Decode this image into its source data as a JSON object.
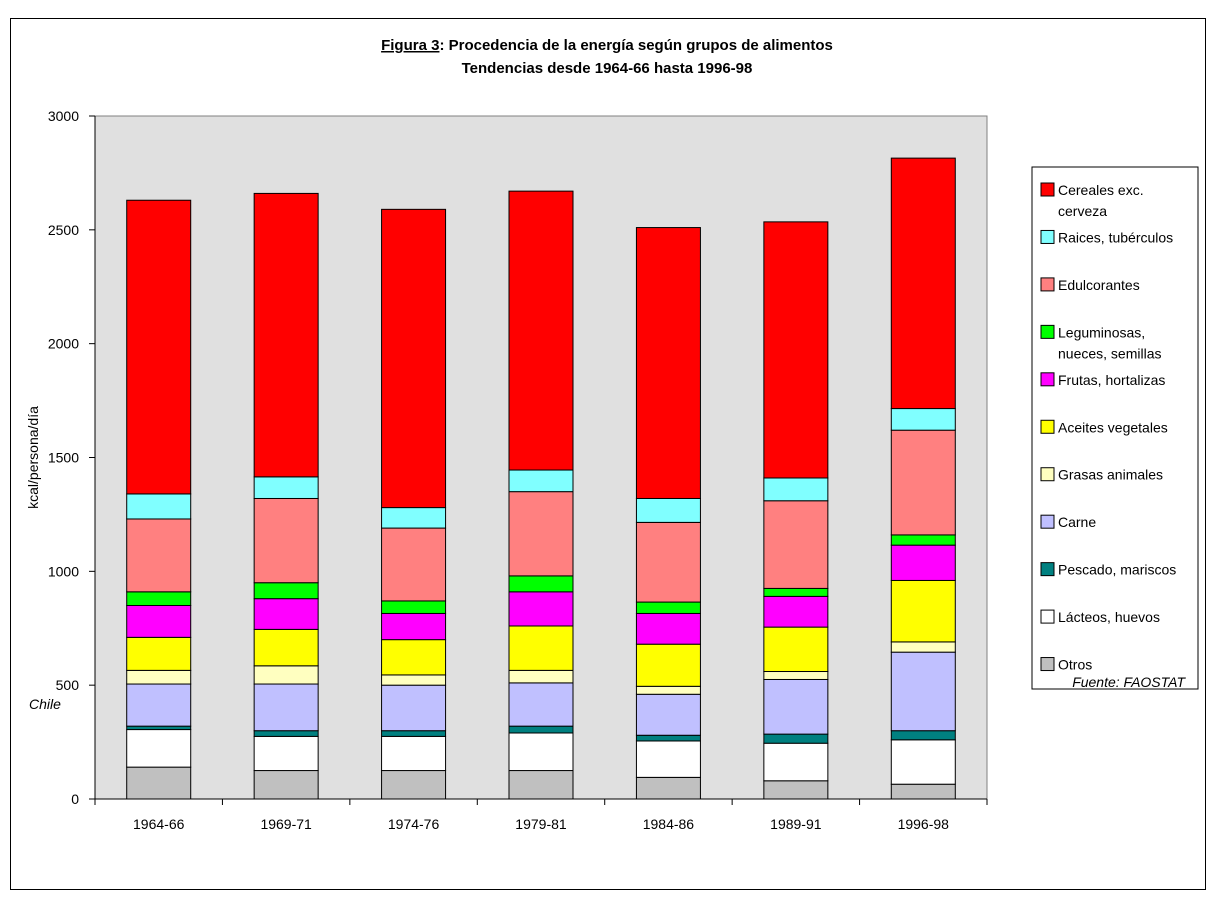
{
  "chart_data": {
    "type": "bar",
    "stacked": true,
    "title_prefix": "Figura 3",
    "title_rest": ": Procedencia de la energía según grupos de alimentos",
    "subtitle": "Tendencias desde 1964-66 hasta 1996-98",
    "xlabel": "",
    "ylabel": "kcal/persona/día",
    "ylim": [
      0,
      3000
    ],
    "yticks": [
      0,
      500,
      1000,
      1500,
      2000,
      2500,
      3000
    ],
    "grid": false,
    "plot_background": "#e0e0e0",
    "legend_position": "right",
    "categories": [
      "1964-66",
      "1969-71",
      "1974-76",
      "1979-81",
      "1984-86",
      "1989-91",
      "1996-98"
    ],
    "series": [
      {
        "name": "Otros",
        "color": "#c0c0c0",
        "values": [
          140,
          125,
          125,
          125,
          95,
          80,
          65
        ]
      },
      {
        "name": "Lácteos, huevos",
        "color": "#ffffff",
        "values": [
          165,
          150,
          150,
          165,
          160,
          165,
          195
        ]
      },
      {
        "name": "Pescado, mariscos",
        "color": "#008080",
        "values": [
          15,
          25,
          25,
          30,
          25,
          40,
          40
        ]
      },
      {
        "name": "Carne",
        "color": "#c0c0ff",
        "values": [
          185,
          205,
          200,
          190,
          180,
          240,
          345
        ]
      },
      {
        "name": "Grasas animales",
        "color": "#ffffc0",
        "values": [
          60,
          80,
          45,
          55,
          35,
          35,
          45
        ]
      },
      {
        "name": "Aceites vegetales",
        "color": "#ffff00",
        "values": [
          145,
          160,
          155,
          195,
          185,
          195,
          270
        ]
      },
      {
        "name": "Frutas, hortalizas",
        "color": "#ff00ff",
        "values": [
          140,
          135,
          115,
          150,
          135,
          135,
          155
        ]
      },
      {
        "name": "Leguminosas, nueces, semillas",
        "color": "#00ff00",
        "values": [
          60,
          70,
          55,
          70,
          50,
          35,
          45
        ]
      },
      {
        "name": "Edulcorantes",
        "color": "#ff8080",
        "values": [
          320,
          370,
          320,
          370,
          350,
          385,
          460
        ]
      },
      {
        "name": "Raices, tubérculos",
        "color": "#80ffff",
        "values": [
          110,
          95,
          90,
          95,
          105,
          100,
          95
        ]
      },
      {
        "name": "Cereales exc. cerveza",
        "color": "#ff0000",
        "values": [
          1290,
          1245,
          1310,
          1225,
          1190,
          1125,
          1100
        ]
      }
    ],
    "legend_order": [
      "Cereales exc. cerveza",
      "Raices, tubérculos",
      "Edulcorantes",
      "Leguminosas, nueces, semillas",
      "Frutas, hortalizas",
      "Aceites vegetales",
      "Grasas animales",
      "Carne",
      "Pescado, mariscos",
      "Lácteos, huevos",
      "Otros"
    ],
    "legend_lines": {
      "Cereales exc. cerveza": [
        "Cereales exc.",
        "cerveza"
      ],
      "Leguminosas, nueces, semillas": [
        "Leguminosas,",
        "nueces, semillas"
      ]
    },
    "annotations": {
      "country": "Chile",
      "source": "Fuente: FAOSTAT"
    }
  }
}
